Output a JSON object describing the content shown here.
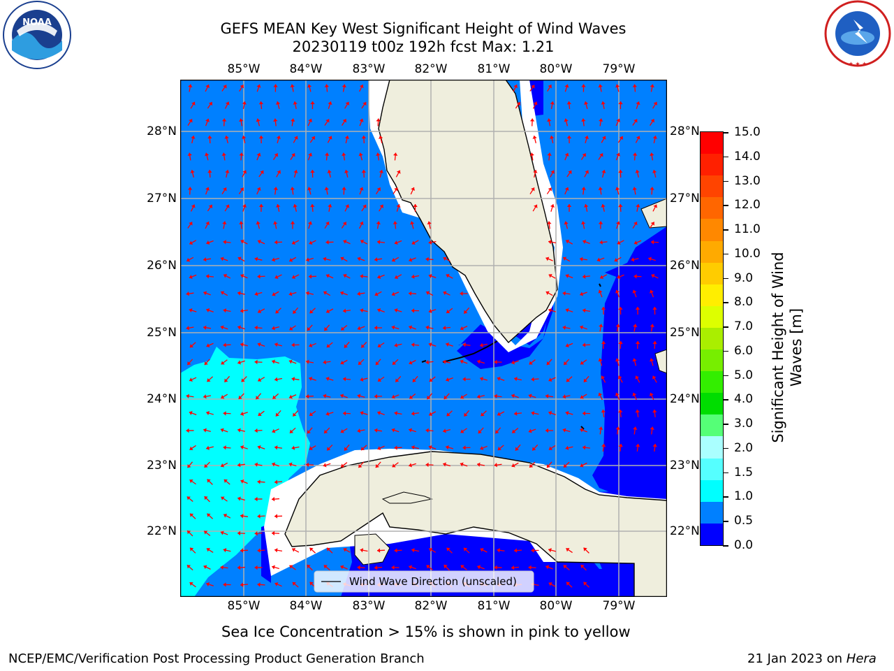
{
  "title": {
    "line1": "GEFS MEAN Key West Significant Height of Wind Waves",
    "line2": "20230119 t00z 192h fcst   Max: 1.21"
  },
  "logos": {
    "noaa": {
      "text": "NOAA",
      "ring_text": "NATIONAL OCEANIC AND ATMOSPHERIC ADMINISTRATION · U.S. DEPARTMENT OF COMMERCE"
    },
    "nws": {
      "ring_text": "NATIONAL WEATHER SERVICE"
    }
  },
  "map": {
    "lon_ticks": [
      "85°W",
      "84°W",
      "83°W",
      "82°W",
      "81°W",
      "80°W",
      "79°W"
    ],
    "lat_ticks": [
      "28°N",
      "27°N",
      "26°N",
      "25°N",
      "24°N",
      "23°N",
      "22°N"
    ],
    "legend": "Wind Wave Direction (unscaled)",
    "colors": {
      "ocean": "#0080ff",
      "low": "#0000ff",
      "cyan": "#00ffff",
      "land": "#efeedd",
      "grid": "#b0b0b0",
      "arrow": "#ff0000"
    }
  },
  "colorbar": {
    "label": "Significant Height of Wind Waves [m]",
    "label_line1": "Significant Height of Wind",
    "label_line2": "Waves [m]",
    "ticks": [
      "15.0",
      "14.0",
      "13.0",
      "12.0",
      "11.0",
      "10.0",
      "9.0",
      "8.0",
      "7.0",
      "6.0",
      "5.0",
      "4.0",
      "3.0",
      "2.0",
      "1.5",
      "1.0",
      "0.5",
      "0.0"
    ],
    "colors_top_to_bottom": [
      "#ff0000",
      "#ff2000",
      "#ff4400",
      "#ff6600",
      "#ff8800",
      "#ffaa00",
      "#ffcc00",
      "#ffee00",
      "#ddff00",
      "#aaee00",
      "#77ee00",
      "#33ee00",
      "#00dd00",
      "#55ff77",
      "#aaffff",
      "#55ffff",
      "#00ffff",
      "#0080ff",
      "#0000ff"
    ]
  },
  "note": "Sea Ice Concentration > 15% is shown in pink to yellow",
  "footer": {
    "left": "NCEP/EMC/Verification Post Processing Product Generation Branch",
    "right_prefix": "21 Jan 2023 on ",
    "right_machine": "Hera"
  }
}
